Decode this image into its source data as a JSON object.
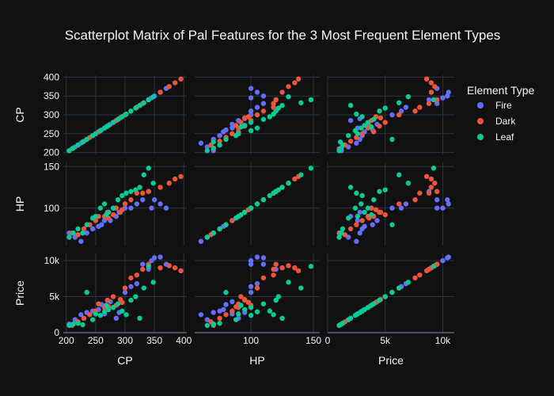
{
  "chart_data": {
    "type": "scatter",
    "title": "Scatterplot Matrix of Pal Features for the 3 Most Frequent Element Types",
    "dimensions": [
      {
        "key": "CP",
        "label": "CP",
        "range": [
          195,
          405
        ],
        "ticks": [
          200,
          250,
          300,
          350,
          400
        ],
        "tick_labels": [
          "200",
          "250",
          "300",
          "350",
          "400"
        ]
      },
      {
        "key": "HP",
        "label": "HP",
        "range": [
          55,
          155
        ],
        "ticks": [
          100,
          150
        ],
        "tick_labels": [
          "100",
          "150"
        ]
      },
      {
        "key": "Price",
        "label": "Price",
        "range": [
          0,
          11000
        ],
        "ticks": [
          0,
          5000,
          10000
        ],
        "tick_labels": [
          "0",
          "5k",
          "10k"
        ]
      }
    ],
    "y_tick_overrides": {
      "HP": {
        "ticks": [
          100,
          150
        ],
        "tick_labels": [
          "100",
          "150"
        ]
      }
    },
    "legend": {
      "title": "Element Type",
      "position": "right"
    },
    "grid": true,
    "series": [
      {
        "name": "Fire",
        "color": "#636efa",
        "points": [
          {
            "CP": 205,
            "HP": 70,
            "Price": 1200
          },
          {
            "CP": 215,
            "HP": 65,
            "Price": 1800
          },
          {
            "CP": 225,
            "HP": 60,
            "Price": 2500
          },
          {
            "CP": 235,
            "HP": 70,
            "Price": 2800
          },
          {
            "CP": 245,
            "HP": 75,
            "Price": 3000
          },
          {
            "CP": 260,
            "HP": 80,
            "Price": 3900
          },
          {
            "CP": 275,
            "HP": 85,
            "Price": 4300
          },
          {
            "CP": 285,
            "HP": 90,
            "Price": 2000
          },
          {
            "CP": 290,
            "HP": 95,
            "Price": 2800
          },
          {
            "CP": 300,
            "HP": 100,
            "Price": 5600
          },
          {
            "CP": 310,
            "HP": 100,
            "Price": 6400
          },
          {
            "CP": 320,
            "HP": 105,
            "Price": 6800
          },
          {
            "CP": 330,
            "HP": 110,
            "Price": 9500
          },
          {
            "CP": 340,
            "HP": 120,
            "Price": 8800
          },
          {
            "CP": 350,
            "HP": 110,
            "Price": 10400
          },
          {
            "CP": 360,
            "HP": 105,
            "Price": 10500
          },
          {
            "CP": 370,
            "HP": 100,
            "Price": 9500
          },
          {
            "CP": 345,
            "HP": 100,
            "Price": 10000
          },
          {
            "CP": 255,
            "HP": 78,
            "Price": 3200
          },
          {
            "CP": 265,
            "HP": 85,
            "Price": 2600
          }
        ]
      },
      {
        "name": "Dark",
        "color": "#ef553b",
        "points": [
          {
            "CP": 210,
            "HP": 70,
            "Price": 1000
          },
          {
            "CP": 220,
            "HP": 68,
            "Price": 1500
          },
          {
            "CP": 230,
            "HP": 75,
            "Price": 2000
          },
          {
            "CP": 240,
            "HP": 80,
            "Price": 2500
          },
          {
            "CP": 250,
            "HP": 85,
            "Price": 3000
          },
          {
            "CP": 255,
            "HP": 90,
            "Price": 4000
          },
          {
            "CP": 265,
            "HP": 90,
            "Price": 3500
          },
          {
            "CP": 270,
            "HP": 95,
            "Price": 4500
          },
          {
            "CP": 280,
            "HP": 92,
            "Price": 5000
          },
          {
            "CP": 285,
            "HP": 100,
            "Price": 3800
          },
          {
            "CP": 295,
            "HP": 98,
            "Price": 4200
          },
          {
            "CP": 300,
            "HP": 105,
            "Price": 6200
          },
          {
            "CP": 310,
            "HP": 110,
            "Price": 7600
          },
          {
            "CP": 320,
            "HP": 118,
            "Price": 8000
          },
          {
            "CP": 330,
            "HP": 118,
            "Price": 8800
          },
          {
            "CP": 340,
            "HP": 120,
            "Price": 9500
          },
          {
            "CP": 360,
            "HP": 125,
            "Price": 9000
          },
          {
            "CP": 375,
            "HP": 130,
            "Price": 9300
          },
          {
            "CP": 385,
            "HP": 135,
            "Price": 9000
          },
          {
            "CP": 395,
            "HP": 138,
            "Price": 8600
          },
          {
            "CP": 272,
            "HP": 88,
            "Price": 3600
          },
          {
            "CP": 292,
            "HP": 95,
            "Price": 4600
          }
        ]
      },
      {
        "name": "Leaf",
        "color": "#00cc96",
        "points": [
          {
            "CP": 205,
            "HP": 65,
            "Price": 1000
          },
          {
            "CP": 212,
            "HP": 70,
            "Price": 1200
          },
          {
            "CP": 220,
            "HP": 75,
            "Price": 1300
          },
          {
            "CP": 228,
            "HP": 70,
            "Price": 1100
          },
          {
            "CP": 235,
            "HP": 80,
            "Price": 5600
          },
          {
            "CP": 245,
            "HP": 88,
            "Price": 1800
          },
          {
            "CP": 250,
            "HP": 90,
            "Price": 2600
          },
          {
            "CP": 258,
            "HP": 100,
            "Price": 2400
          },
          {
            "CP": 265,
            "HP": 105,
            "Price": 2900
          },
          {
            "CP": 272,
            "HP": 95,
            "Price": 3200
          },
          {
            "CP": 280,
            "HP": 100,
            "Price": 3500
          },
          {
            "CP": 288,
            "HP": 110,
            "Price": 4000
          },
          {
            "CP": 295,
            "HP": 115,
            "Price": 3000
          },
          {
            "CP": 302,
            "HP": 118,
            "Price": 2500
          },
          {
            "CP": 310,
            "HP": 120,
            "Price": 4500
          },
          {
            "CP": 318,
            "HP": 122,
            "Price": 5000
          },
          {
            "CP": 325,
            "HP": 125,
            "Price": 2000
          },
          {
            "CP": 332,
            "HP": 140,
            "Price": 6200
          },
          {
            "CP": 340,
            "HP": 148,
            "Price": 9200
          },
          {
            "CP": 348,
            "HP": 130,
            "Price": 7000
          },
          {
            "CP": 268,
            "HP": 92,
            "Price": 3800
          }
        ]
      }
    ]
  }
}
